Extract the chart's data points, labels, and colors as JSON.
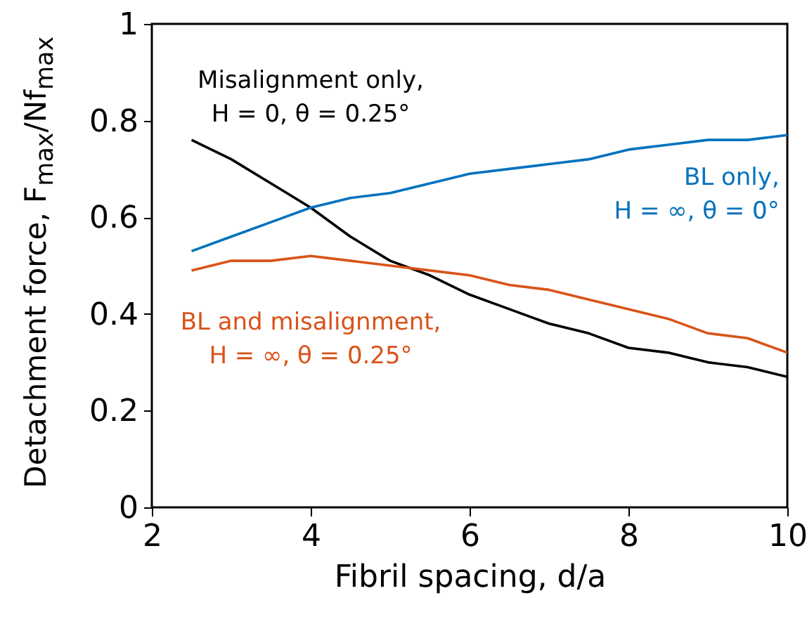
{
  "chart_data": {
    "type": "line",
    "xlabel": "Fibril spacing, d/a",
    "ylabel": "Detachment force, F$_{max}$/Nf$_{max}$",
    "x": [
      2.5,
      3,
      3.5,
      4,
      4.5,
      5,
      5.5,
      6,
      6.5,
      7,
      7.5,
      8,
      8.5,
      9,
      9.5,
      10
    ],
    "series": [
      {
        "name": "Misalignment only, H = 0, θ = 0.25°",
        "color": "#000000",
        "values": [
          0.76,
          0.72,
          0.67,
          0.62,
          0.56,
          0.51,
          0.48,
          0.44,
          0.41,
          0.38,
          0.36,
          0.33,
          0.32,
          0.3,
          0.29,
          0.27
        ]
      },
      {
        "name": "BL only, H = ∞, θ = 0°",
        "color": "#0072bd",
        "values": [
          0.53,
          0.56,
          0.59,
          0.62,
          0.64,
          0.65,
          0.67,
          0.69,
          0.7,
          0.71,
          0.72,
          0.74,
          0.75,
          0.76,
          0.76,
          0.77
        ]
      },
      {
        "name": "BL and misalignment, H = ∞, θ = 0.25°",
        "color": "#d95319",
        "values": [
          0.49,
          0.51,
          0.51,
          0.52,
          0.51,
          0.5,
          0.49,
          0.48,
          0.46,
          0.45,
          0.43,
          0.41,
          0.39,
          0.36,
          0.35,
          0.32
        ]
      }
    ],
    "xlim": [
      2,
      10
    ],
    "xticks": [
      2,
      4,
      6,
      8,
      10
    ],
    "ylim": [
      0,
      1
    ],
    "yticks": [
      0,
      0.2,
      0.4,
      0.6,
      0.8,
      1
    ],
    "grid": false
  }
}
